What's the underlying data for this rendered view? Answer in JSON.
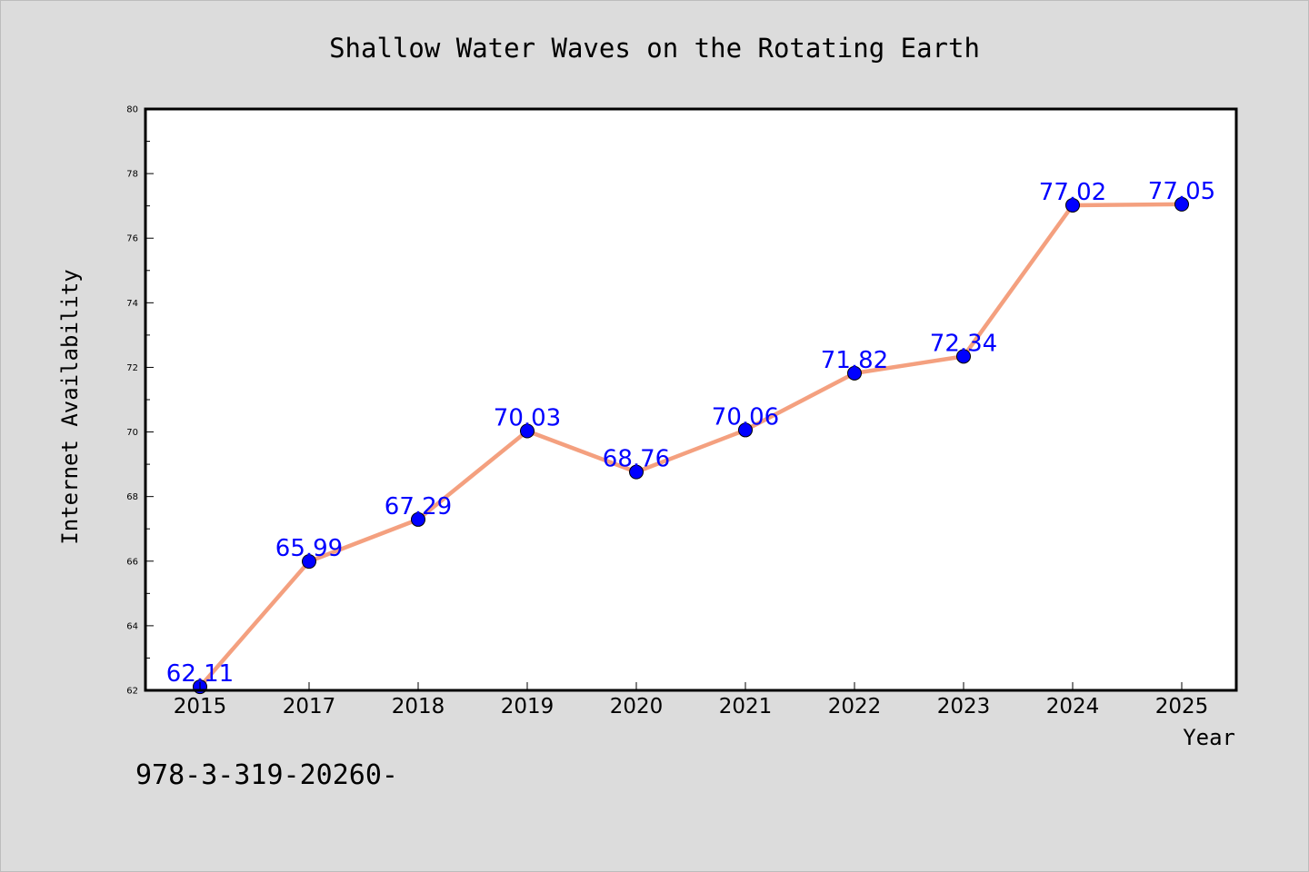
{
  "chart_data": {
    "type": "line",
    "title": "Shallow Water Waves on the Rotating Earth",
    "xlabel": "Year",
    "ylabel": "Internet Availability",
    "categories": [
      "2015",
      "2017",
      "2018",
      "2019",
      "2020",
      "2021",
      "2022",
      "2023",
      "2024",
      "2025"
    ],
    "series": [
      {
        "values": [
          62.11,
          65.99,
          67.29,
          70.03,
          68.76,
          70.06,
          71.82,
          72.34,
          77.02,
          77.05
        ]
      }
    ],
    "data_labels": [
      "62.11",
      "65.99",
      "67.29",
      "70.03",
      "68.76",
      "70.06",
      "71.82",
      "72.34",
      "77.02",
      "77.05"
    ],
    "ylim": [
      62,
      80
    ],
    "yticks": [
      "62",
      "64",
      "66",
      "68",
      "70",
      "72",
      "74",
      "76",
      "78",
      "80"
    ],
    "grid": false,
    "legend": "none",
    "colors": {
      "background": "#dcdcdc",
      "plot_background": "#ffffff",
      "line": "#f4a07f",
      "marker": "#0000ff",
      "label": "#0000ff",
      "text": "#000000"
    }
  },
  "footer_text": "978-3-319-20260-"
}
